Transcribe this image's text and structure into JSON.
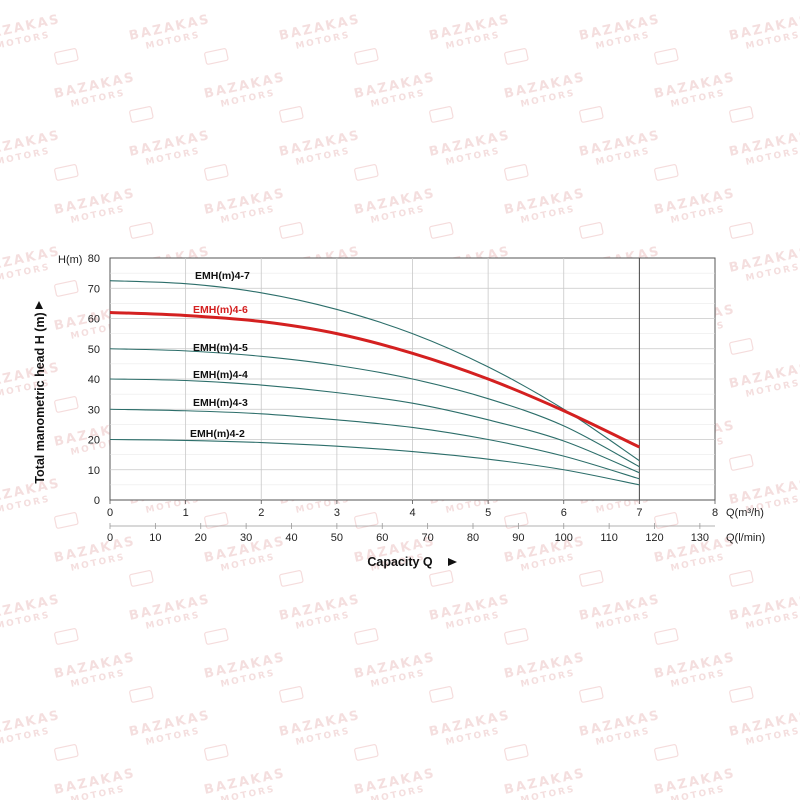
{
  "chart_data": {
    "type": "line",
    "xlabel": "Capacity Q",
    "ylabel": "Total manometric head H (m)",
    "y_unit": "H(m)",
    "x_unit_primary": "Q(m³/h)",
    "x_unit_secondary": "Q(l/min)",
    "xlim": [
      0,
      8
    ],
    "ylim": [
      0,
      80
    ],
    "x_ticks": [
      0,
      1,
      2,
      3,
      4,
      5,
      6,
      7,
      8
    ],
    "x_ticks_secondary": [
      0,
      10,
      20,
      30,
      40,
      50,
      60,
      70,
      80,
      90,
      100,
      110,
      120,
      130
    ],
    "y_ticks": [
      0,
      10,
      20,
      30,
      40,
      50,
      60,
      70,
      80
    ],
    "grid": true,
    "highlight_color": "#d42020",
    "curve_color": "#2c6e6a",
    "series": [
      {
        "name": "EMH(m)4-7",
        "highlight": false,
        "x": [
          0,
          1,
          2,
          3,
          4,
          5,
          6,
          7
        ],
        "y": [
          72.5,
          71.5,
          68.5,
          63,
          55,
          44,
          30,
          13
        ]
      },
      {
        "name": "EMH(m)4-6",
        "highlight": true,
        "x": [
          0,
          1,
          2,
          3,
          4,
          5,
          6,
          7
        ],
        "y": [
          62,
          61,
          59,
          55,
          48.5,
          40,
          29.5,
          17.5
        ]
      },
      {
        "name": "EMH(m)4-5",
        "highlight": false,
        "x": [
          0,
          1,
          2,
          3,
          4,
          5,
          6,
          7
        ],
        "y": [
          50,
          49.3,
          47.5,
          44.5,
          40,
          33.5,
          24.5,
          11
        ]
      },
      {
        "name": "EMH(m)4-4",
        "highlight": false,
        "x": [
          0,
          1,
          2,
          3,
          4,
          5,
          6,
          7
        ],
        "y": [
          40,
          39.5,
          38,
          35.5,
          32,
          26.5,
          19.5,
          9
        ]
      },
      {
        "name": "EMH(m)4-3",
        "highlight": false,
        "x": [
          0,
          1,
          2,
          3,
          4,
          5,
          6,
          7
        ],
        "y": [
          30,
          29.5,
          28.5,
          26.5,
          24,
          20,
          14.5,
          7
        ]
      },
      {
        "name": "EMH(m)4-2",
        "highlight": false,
        "x": [
          0,
          1,
          2,
          3,
          4,
          5,
          6,
          7
        ],
        "y": [
          20,
          19.7,
          19,
          17.8,
          16,
          13.5,
          10,
          5
        ]
      }
    ]
  },
  "watermark": {
    "text_line1": "BAZAKAS",
    "text_line2": "MOTORS"
  }
}
